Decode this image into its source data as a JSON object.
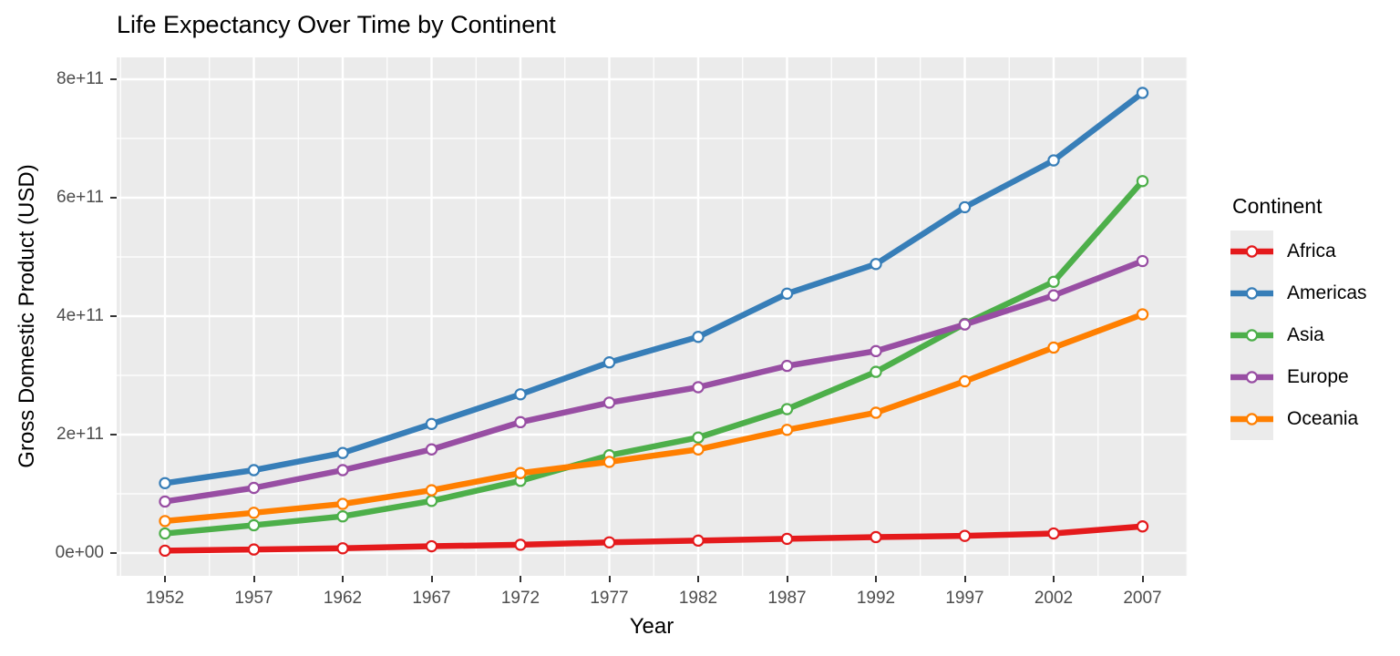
{
  "title": "Life Expectancy Over Time by Continent",
  "axes": {
    "x_title": "Year",
    "y_title": "Gross Domestic Product (USD)",
    "x_tick_labels": [
      "1952",
      "1957",
      "1962",
      "1967",
      "1972",
      "1977",
      "1982",
      "1987",
      "1992",
      "1997",
      "2002",
      "2007"
    ],
    "y_tick_labels": [
      "0e+00",
      "2e+11",
      "4e+11",
      "6e+11",
      "8e+11"
    ],
    "y_tick_values": [
      0,
      200000000000.0,
      400000000000.0,
      600000000000.0,
      800000000000.0
    ]
  },
  "legend": {
    "title": "Continent",
    "entries": [
      "Africa",
      "Americas",
      "Asia",
      "Europe",
      "Oceania"
    ]
  },
  "style": {
    "panel_background": "#EBEBEB",
    "grid_color": "#FFFFFF",
    "tick_label_color": "#4D4D4D",
    "text_color": "#000000",
    "marker_fill": "#FFFFFF"
  },
  "chart_data": {
    "type": "line",
    "title": "Life Expectancy Over Time by Continent",
    "xlabel": "Year",
    "ylabel": "Gross Domestic Product (USD)",
    "x": [
      1952,
      1957,
      1962,
      1967,
      1972,
      1977,
      1982,
      1987,
      1992,
      1997,
      2002,
      2007
    ],
    "xlim": [
      1949.3,
      2009.7
    ],
    "ylim": [
      -37000000000.0,
      837000000000.0
    ],
    "grid": true,
    "marker": "open-circle",
    "legend_position": "right",
    "series": [
      {
        "name": "Africa",
        "color": "#E41A1C",
        "values": [
          4000000000.0,
          6000000000.0,
          8000000000.0,
          11500000000.0,
          14000000000.0,
          18000000000.0,
          21000000000.0,
          24000000000.0,
          27000000000.0,
          29000000000.0,
          33000000000.0,
          45000000000.0
        ]
      },
      {
        "name": "Americas",
        "color": "#377EB8",
        "values": [
          118000000000.0,
          140000000000.0,
          169000000000.0,
          218000000000.0,
          268000000000.0,
          322000000000.0,
          365000000000.0,
          438000000000.0,
          488000000000.0,
          584000000000.0,
          663000000000.0,
          777000000000.0
        ]
      },
      {
        "name": "Asia",
        "color": "#4DAF4A",
        "values": [
          33000000000.0,
          47000000000.0,
          62000000000.0,
          88000000000.0,
          122000000000.0,
          165000000000.0,
          195000000000.0,
          243000000000.0,
          306000000000.0,
          387000000000.0,
          458000000000.0,
          628000000000.0
        ]
      },
      {
        "name": "Europe",
        "color": "#984EA3",
        "values": [
          87000000000.0,
          110000000000.0,
          140000000000.0,
          175000000000.0,
          221000000000.0,
          254000000000.0,
          280000000000.0,
          316000000000.0,
          341000000000.0,
          386000000000.0,
          435000000000.0,
          493000000000.0
        ]
      },
      {
        "name": "Oceania",
        "color": "#FF7F00",
        "values": [
          54000000000.0,
          68000000000.0,
          83000000000.0,
          106000000000.0,
          135000000000.0,
          154000000000.0,
          175000000000.0,
          208000000000.0,
          237000000000.0,
          290000000000.0,
          347000000000.0,
          403000000000.0
        ]
      }
    ]
  }
}
